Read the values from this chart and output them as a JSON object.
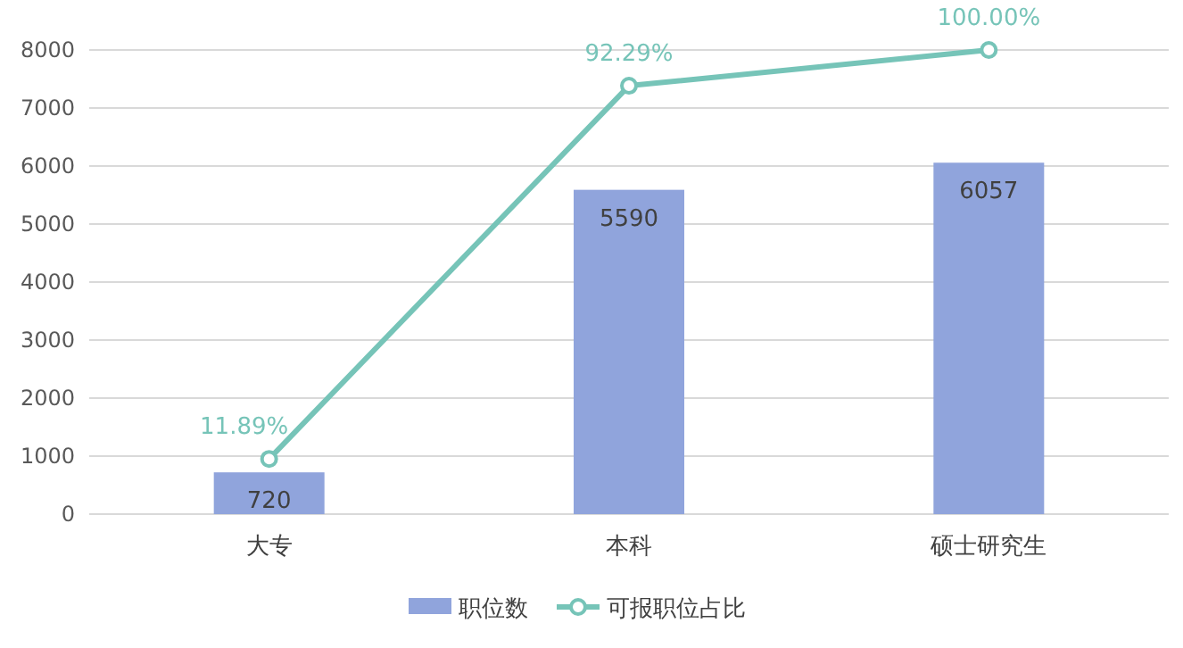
{
  "chart_data": {
    "type": "bar",
    "categories": [
      "大专",
      "本科",
      "硕士研究生"
    ],
    "series": [
      {
        "name": "职位数",
        "color": "#90a4dc",
        "values": [
          720,
          5590,
          6057
        ]
      },
      {
        "name": "可报职位占比",
        "type": "line",
        "axis": "y2",
        "color": "#76c4b8",
        "values": [
          11.89,
          92.29,
          100.0
        ],
        "value_labels": [
          "11.89%",
          "92.29%",
          "100.00%"
        ],
        "marker": "circle"
      }
    ],
    "ylim": [
      0,
      8000
    ],
    "yticks": [
      0,
      1000,
      2000,
      3000,
      4000,
      5000,
      6000,
      7000,
      8000
    ],
    "y2lim": [
      0,
      100
    ],
    "data_labels": true,
    "grid": "y",
    "legend": "bottom"
  }
}
